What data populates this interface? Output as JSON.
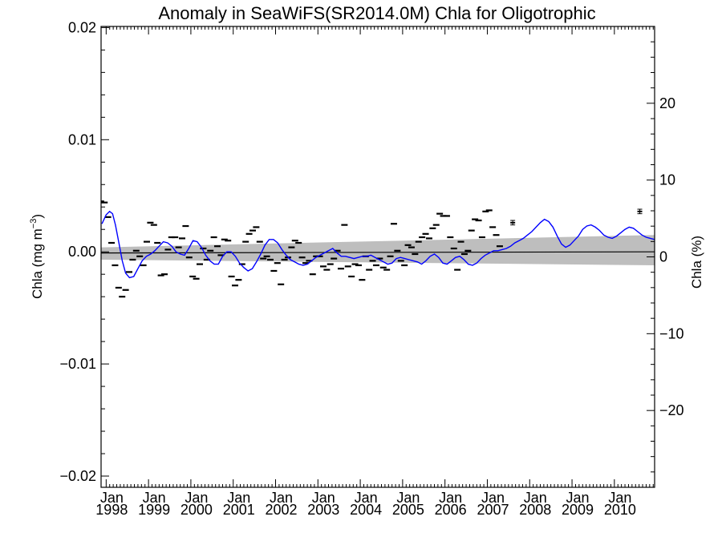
{
  "chart_data": {
    "type": "scatter",
    "title": "Anomaly in SeaWiFS(SR2014.0M) Chla for Oligotrophic",
    "ylabel": "Chla (mg m",
    "ylabel_sup": "−3",
    "ylabel_close": ")",
    "y2label": "Chla (%)",
    "ylim": [
      -0.021,
      0.0201
    ],
    "y2lim": [
      -30,
      30
    ],
    "xlim": [
      1997.88,
      2010.95
    ],
    "y_ticks": [
      -0.02,
      -0.01,
      0.0,
      0.01,
      0.02
    ],
    "y_tick_labels": [
      "−0.02",
      "−0.01",
      "0.00",
      "0.01",
      "0.02"
    ],
    "y2_ticks": [
      -20,
      -10,
      0,
      10,
      20
    ],
    "y2_tick_labels": [
      "−20",
      "−10",
      "0",
      "10",
      "20"
    ],
    "x_ticks": [
      1998,
      1999,
      2000,
      2001,
      2002,
      2003,
      2004,
      2005,
      2006,
      2007,
      2008,
      2009,
      2010
    ],
    "x_tick_labels_top": [
      "Jan",
      "Jan",
      "Jan",
      "Jan",
      "Jan",
      "Jan",
      "Jan",
      "Jan",
      "Jan",
      "Jan",
      "Jan",
      "Jan",
      "Jan"
    ],
    "x_tick_labels_bottom": [
      "1998",
      "1999",
      "2000",
      "2001",
      "2002",
      "2003",
      "2004",
      "2005",
      "2006",
      "2007",
      "2008",
      "2009",
      "2010"
    ],
    "grid": false,
    "legend": "none",
    "series": [
      {
        "kind": "monthly-anomaly",
        "color": "#000000",
        "start": 1997.71,
        "step": 0.08333,
        "values": [
          0.002,
          0.0039,
          0.0045,
          0.0044,
          0.0031,
          0.0008,
          -0.0012,
          -0.0032,
          -0.004,
          -0.0034,
          -0.0018,
          -0.0007,
          0.0001,
          -0.0004,
          -0.0012,
          0.0009,
          0.0026,
          0.0024,
          0.0008,
          -0.0021,
          -0.002,
          0.0002,
          0.0013,
          0.0013,
          0.0004,
          0.0012,
          0.0023,
          -0.0005,
          -0.0022,
          -0.0024,
          -0.0011,
          0.0003,
          -0.0007,
          0.0001,
          0.0013,
          0.0005,
          -0.0003,
          0.0011,
          0.001,
          -0.0022,
          -0.003,
          -0.0025,
          -0.0011,
          0.0009,
          0.0016,
          0.0019,
          0.0022,
          0.0009,
          -0.0006,
          -0.0004,
          -0.0007,
          -0.0017,
          -0.001,
          -0.0029,
          -0.0007,
          -0.0005,
          0.0004,
          0.001,
          0.0008,
          -0.0005,
          -0.001,
          -0.0008,
          -0.002,
          -0.0004,
          -0.0004,
          -0.0013,
          -0.0016,
          -0.0011,
          -0.0006,
          0.0001,
          -0.0015,
          0.0024,
          -0.0013,
          -0.0022,
          -0.0011,
          -0.0012,
          -0.0025,
          -0.0004,
          -0.0016,
          -0.0008,
          -0.0012,
          -0.0006,
          -0.0014,
          -0.0016,
          -0.0004,
          0.0025,
          0.0001,
          -0.0008,
          -0.0012,
          0.0006,
          0.0004,
          -0.0002,
          0.0009,
          0.0013,
          0.0016,
          0.0012,
          0.0021,
          0.0024,
          0.0034,
          0.0032,
          0.0032,
          0.0013,
          0.0003,
          -0.0016,
          0.0009,
          -0.0002,
          0.0001,
          0.0019,
          0.0029,
          0.0028,
          0.0013,
          0.0036,
          0.0037,
          0.0022,
          0.0015,
          0.0005
        ]
      },
      {
        "kind": "smoothed-anomaly",
        "color": "#0000ff",
        "x": [
          1997.9,
          1998.0,
          1998.08,
          1998.15,
          1998.22,
          1998.3,
          1998.38,
          1998.46,
          1998.55,
          1998.65,
          1998.75,
          1998.85,
          1998.95,
          1999.05,
          1999.15,
          1999.25,
          1999.35,
          1999.45,
          1999.55,
          1999.65,
          1999.75,
          1999.85,
          1999.95,
          2000.05,
          2000.15,
          2000.25,
          2000.35,
          2000.45,
          2000.55,
          2000.65,
          2000.75,
          2000.85,
          2000.95,
          2001.05,
          2001.15,
          2001.25,
          2001.35,
          2001.45,
          2001.55,
          2001.65,
          2001.75,
          2001.85,
          2001.95,
          2002.05,
          2002.15,
          2002.25,
          2002.35,
          2002.45,
          2002.55,
          2002.65,
          2002.75,
          2002.85,
          2002.95,
          2003.05,
          2003.15,
          2003.25,
          2003.35,
          2003.45,
          2003.55,
          2003.65,
          2003.75,
          2003.85,
          2003.95,
          2004.05,
          2004.15,
          2004.25,
          2004.35,
          2004.45,
          2004.55,
          2004.65,
          2004.75,
          2004.85,
          2004.95,
          2005.05,
          2005.15,
          2005.25,
          2005.35,
          2005.45,
          2005.55,
          2005.65,
          2005.75,
          2005.85,
          2005.95,
          2006.05,
          2006.15,
          2006.25,
          2006.35,
          2006.45,
          2006.55,
          2006.65,
          2006.75,
          2006.85,
          2006.95,
          2007.05,
          2007.15,
          2007.25,
          2007.35,
          2007.45,
          2007.55,
          2007.65,
          2007.75,
          2007.85,
          2007.95,
          2008.05,
          2008.15,
          2008.25,
          2008.35,
          2008.45,
          2008.55,
          2008.65,
          2008.75,
          2008.85,
          2008.95,
          2009.05,
          2009.15,
          2009.25,
          2009.35,
          2009.45,
          2009.55,
          2009.65,
          2009.75,
          2009.85,
          2009.95,
          2010.05,
          2010.15,
          2010.25,
          2010.35,
          2010.45,
          2010.55,
          2010.65,
          2010.75,
          2010.85,
          2010.95
        ],
        "values": [
          0.0025,
          0.0033,
          0.0036,
          0.0034,
          0.0024,
          0.0008,
          -0.0008,
          -0.0019,
          -0.0023,
          -0.0022,
          -0.0015,
          -0.0008,
          -0.0004,
          -0.0002,
          0.0001,
          0.0005,
          0.0009,
          0.0008,
          0.0005,
          0.0,
          -0.0002,
          -0.0003,
          0.0003,
          0.001,
          0.0009,
          0.0004,
          -0.0003,
          -0.0008,
          -0.0011,
          -0.0011,
          -0.0004,
          0.0,
          0.0,
          -0.0004,
          -0.001,
          -0.0014,
          -0.0017,
          -0.0015,
          -0.0009,
          -0.0002,
          0.0006,
          0.0011,
          0.0011,
          0.0008,
          0.0002,
          -0.0003,
          -0.0007,
          -0.0009,
          -0.0011,
          -0.0012,
          -0.0011,
          -0.0008,
          -0.0005,
          -0.0003,
          -0.0001,
          0.0001,
          0.0003,
          -0.0001,
          -0.0004,
          -0.0004,
          -0.0005,
          -0.0006,
          -0.0005,
          -0.0004,
          -0.0004,
          -0.0003,
          -0.0005,
          -0.0007,
          -0.0009,
          -0.0011,
          -0.001,
          -0.0006,
          -0.0005,
          -0.0006,
          -0.0007,
          -0.0008,
          -0.0009,
          -0.0011,
          -0.0008,
          -0.0004,
          -0.0002,
          -0.0005,
          -0.001,
          -0.0011,
          -0.0008,
          -0.0005,
          -0.0004,
          -0.0007,
          -0.0011,
          -0.0012,
          -0.001,
          -0.0006,
          -0.0003,
          -0.0001,
          0.0001,
          0.0001,
          0.0002,
          0.0003,
          0.0005,
          0.0008,
          0.001,
          0.0012,
          0.0015,
          0.0018,
          0.0022,
          0.0026,
          0.0029,
          0.0027,
          0.0022,
          0.0014,
          0.0007,
          0.0004,
          0.0006,
          0.001,
          0.0014,
          0.002,
          0.0023,
          0.0024,
          0.0022,
          0.0019,
          0.0015,
          0.0013,
          0.0012,
          0.0014,
          0.0017,
          0.002,
          0.0022,
          0.0021,
          0.0018,
          0.0015,
          0.0013,
          0.0012,
          0.0011
        ]
      },
      {
        "kind": "trend-line",
        "color": "#000000",
        "x": [
          1997.88,
          2010.95
        ],
        "values": [
          -0.0001,
          0.0
        ]
      },
      {
        "kind": "trend-confidence-band",
        "color": "#bebebe",
        "x": [
          1997.88,
          2010.95
        ],
        "upper": [
          0.0004,
          0.0015
        ],
        "lower": [
          -0.0007,
          -0.0012
        ]
      },
      {
        "kind": "error-bar-points",
        "color": "#000000",
        "x": [
          2007.6,
          2010.6
        ],
        "values": [
          0.0026,
          0.0036
        ],
        "err": [
          0.0002,
          0.0002
        ]
      }
    ]
  }
}
